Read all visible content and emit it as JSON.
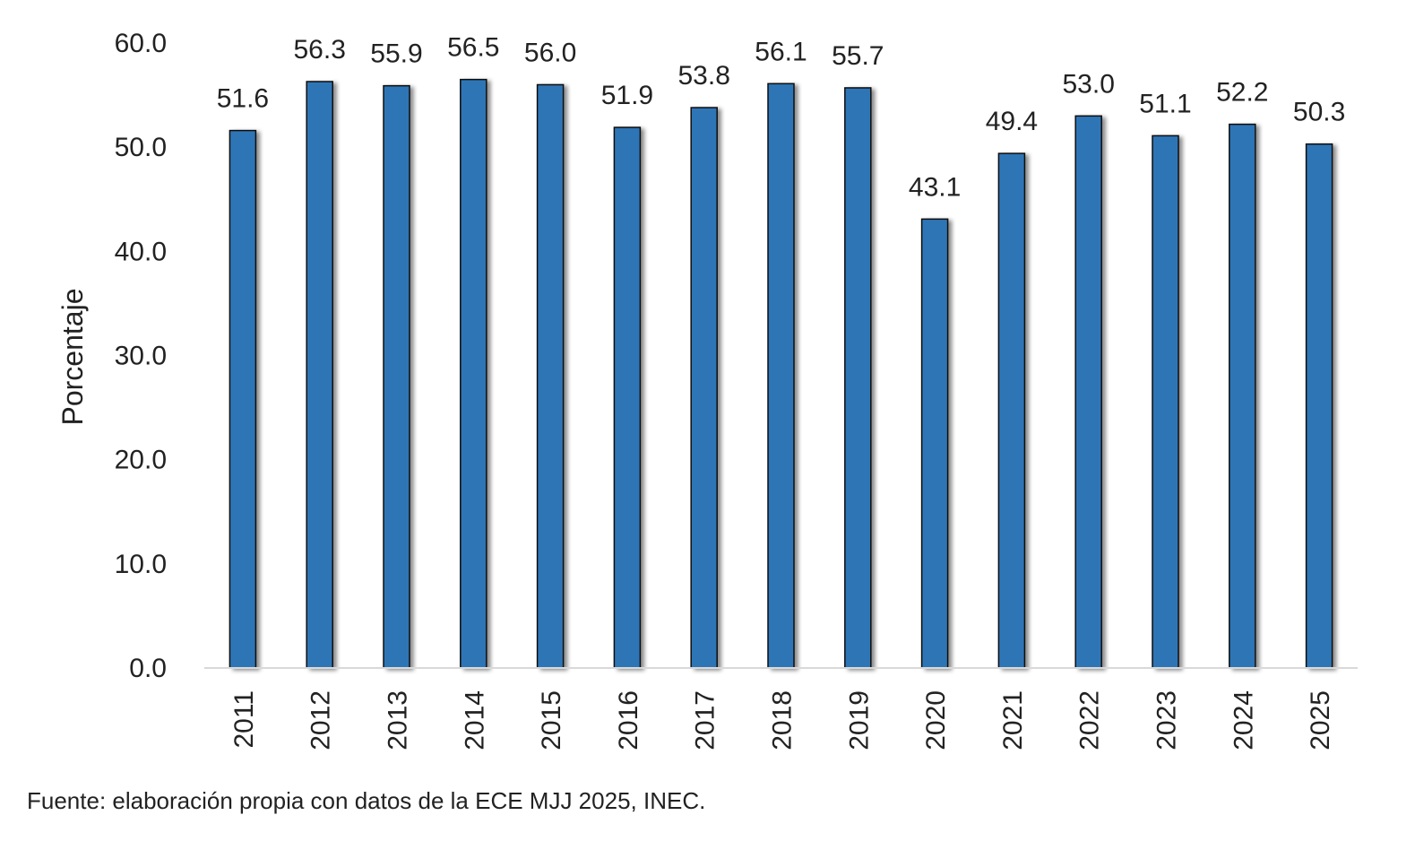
{
  "chart_data": {
    "type": "bar",
    "title": "",
    "xlabel": "",
    "ylabel": "Porcentaje",
    "categories": [
      "2011",
      "2012",
      "2013",
      "2014",
      "2015",
      "2016",
      "2017",
      "2018",
      "2019",
      "2020",
      "2021",
      "2022",
      "2023",
      "2024",
      "2025"
    ],
    "values": [
      51.6,
      56.3,
      55.9,
      56.5,
      56.0,
      51.9,
      53.8,
      56.1,
      55.7,
      43.1,
      49.4,
      53.0,
      51.1,
      52.2,
      50.3
    ],
    "value_labels": [
      "51.6",
      "56.3",
      "55.9",
      "56.5",
      "56.0",
      "51.9",
      "53.8",
      "56.1",
      "55.7",
      "43.1",
      "49.4",
      "53.0",
      "51.1",
      "52.2",
      "50.3"
    ],
    "ylim": [
      0,
      60
    ],
    "yticks": [
      "0.0",
      "10.0",
      "20.0",
      "30.0",
      "40.0",
      "50.0",
      "60.0"
    ],
    "grid": false,
    "legend": "none",
    "bar_color": "#2E75B6",
    "bar_outline": "#111111"
  },
  "source": "Fuente: elaboración propia con datos de la ECE MJJ 2025, INEC."
}
